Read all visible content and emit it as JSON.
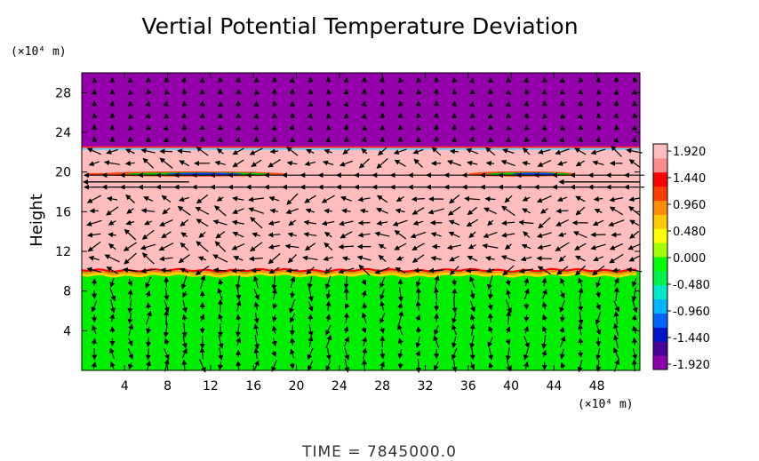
{
  "chart_data": {
    "type": "heatmap",
    "title": "Vertial Potential Temperature Deviation",
    "xlabel": "",
    "ylabel": "Height",
    "x_unit": "(×10⁴ m)",
    "y_unit": "(×10⁴ m)",
    "xlim": [
      0,
      52
    ],
    "ylim": [
      0,
      30
    ],
    "x_ticks": [
      "4",
      "8",
      "12",
      "16",
      "20",
      "24",
      "28",
      "32",
      "36",
      "40",
      "44",
      "48"
    ],
    "y_ticks": [
      "4",
      "8",
      "12",
      "16",
      "20",
      "24",
      "28"
    ],
    "colorbar": {
      "ticks": [
        "1.920",
        "1.440",
        "0.960",
        "0.480",
        "0.000",
        "-0.480",
        "-0.960",
        "-1.440",
        "-1.920"
      ],
      "range": [
        -1.92,
        1.92
      ],
      "colors": [
        "#8b00a8",
        "#4b0096",
        "#0014c8",
        "#0064ff",
        "#00b4ff",
        "#00e6c8",
        "#00f050",
        "#00ff00",
        "#a0ff00",
        "#ffff00",
        "#ffc800",
        "#ff8c00",
        "#ff3c00",
        "#ff0000",
        "#ff8c8c",
        "#ffbcbc"
      ]
    },
    "layers": [
      {
        "y_from": 0,
        "y_to": 10,
        "value": 0.0,
        "color": "#00ee00"
      },
      {
        "y_from": 10,
        "y_to": 22.5,
        "value": 1.92,
        "color": "#ffbdbd"
      },
      {
        "y_from": 22.5,
        "y_to": 30,
        "value": -1.92,
        "color": "#9400aa"
      }
    ],
    "wind_field": "arrows"
  },
  "footer": {
    "time_text": "TIME  =  7845000.0"
  }
}
